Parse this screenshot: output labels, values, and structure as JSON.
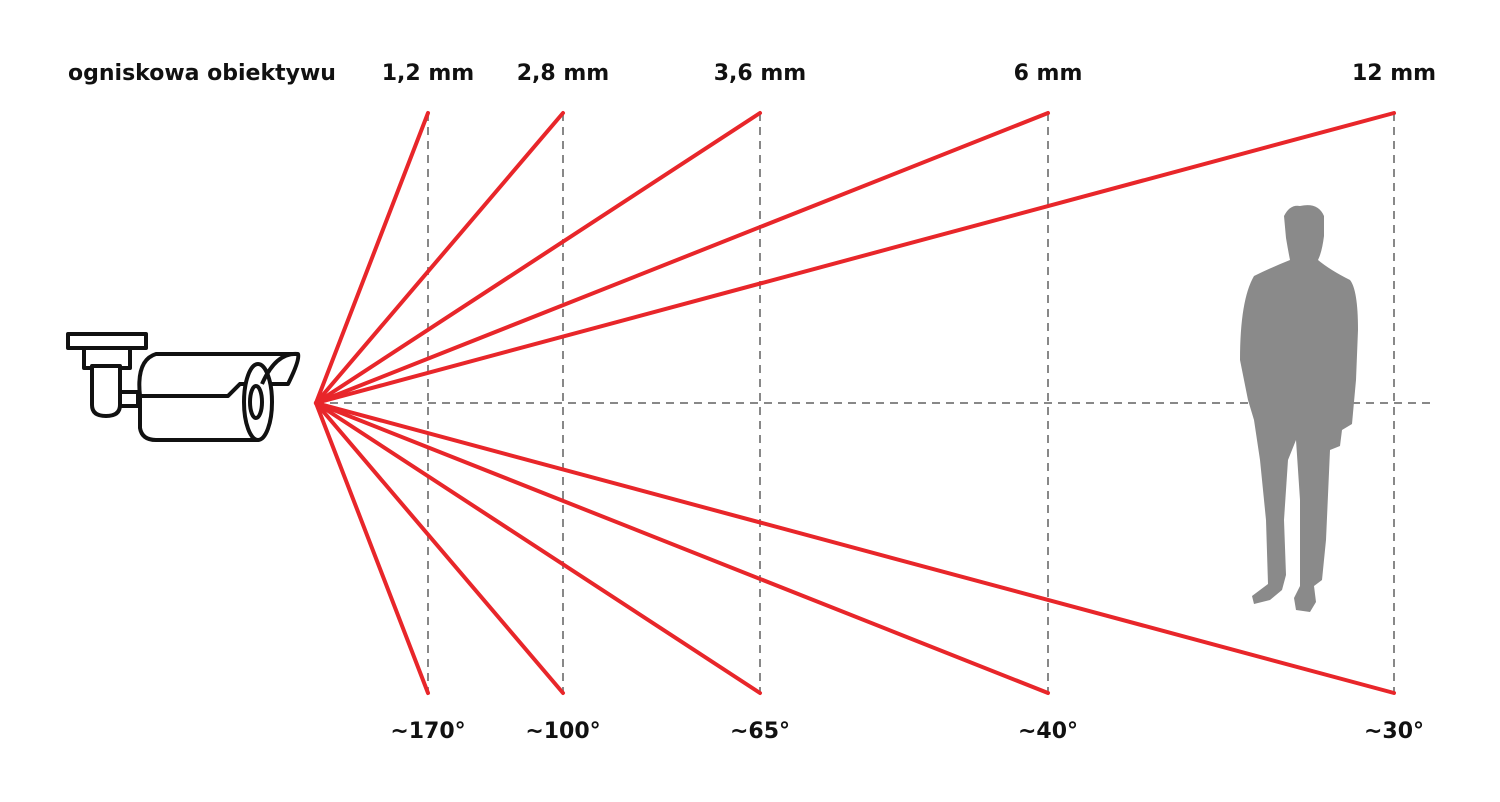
{
  "header": {
    "label": "ogniskowa obiektywu"
  },
  "lenses": [
    {
      "focal": "1,2 mm",
      "angle": "~170°"
    },
    {
      "focal": "2,8 mm",
      "angle": "~100°"
    },
    {
      "focal": "3,6 mm",
      "angle": "~65°"
    },
    {
      "focal": "6 mm",
      "angle": "~40°"
    },
    {
      "focal": "12 mm",
      "angle": "~30°"
    }
  ]
}
